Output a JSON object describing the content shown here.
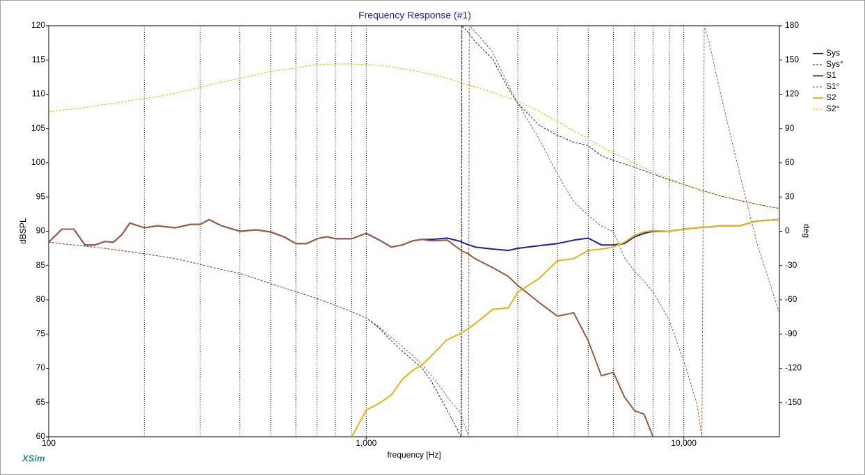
{
  "chart_data": {
    "type": "line",
    "title": "Frequency Response (#1)",
    "xlabel": "frequency [Hz]",
    "ylabel": "dBSPL",
    "y2label": "deg",
    "watermark": "XSim",
    "xscale": "log",
    "xlim": [
      100,
      20000
    ],
    "xticks": [
      100,
      {
        "value": 1000,
        "label": "1,000"
      },
      {
        "value": 10000,
        "label": "10,000"
      }
    ],
    "xgrid": [
      200,
      300,
      400,
      500,
      600,
      700,
      800,
      900,
      1000,
      2000,
      3000,
      4000,
      5000,
      6000,
      7000,
      8000,
      9000,
      10000
    ],
    "ylim": [
      60,
      120
    ],
    "yticks": [
      60,
      65,
      70,
      75,
      80,
      85,
      90,
      95,
      100,
      105,
      110,
      115,
      120
    ],
    "y2lim": [
      -180,
      180
    ],
    "y2ticks": [
      -150,
      -120,
      -90,
      -60,
      -30,
      0,
      30,
      60,
      90,
      120,
      150,
      180
    ],
    "legend": "right",
    "x": [
      100,
      110,
      120,
      130,
      140,
      150,
      160,
      170,
      180,
      200,
      220,
      250,
      280,
      300,
      320,
      350,
      400,
      450,
      500,
      550,
      600,
      650,
      700,
      750,
      800,
      900,
      1000,
      1100,
      1200,
      1300,
      1400,
      1500,
      1600,
      1800,
      1990,
      2000,
      2100,
      2110,
      2200,
      2500,
      2800,
      3000,
      3500,
      4000,
      4500,
      5000,
      5500,
      6000,
      6500,
      7000,
      7500,
      8000,
      9000,
      10000,
      11000,
      11400,
      11600,
      12000,
      13000,
      15000,
      17000,
      20000
    ],
    "series": [
      {
        "name": "Sys",
        "color": "#1c1ca8",
        "width": 2,
        "dash": false,
        "axis": "y",
        "values": [
          88.4,
          90.3,
          90.3,
          88,
          88,
          88.5,
          88.4,
          89.5,
          91.2,
          90.5,
          90.8,
          90.5,
          91,
          91,
          91.7,
          90.8,
          90,
          90.2,
          89.9,
          89.2,
          88.2,
          88.2,
          88.9,
          89.2,
          88.9,
          88.9,
          89.7,
          88.7,
          87.7,
          88,
          88.6,
          88.8,
          88.8,
          89,
          88.5,
          88.4,
          88,
          88,
          87.7,
          87.4,
          87.2,
          87.5,
          87.9,
          88.2,
          88.7,
          89,
          88,
          88,
          88.2,
          89.2,
          89.7,
          90,
          90,
          90.3,
          90.5,
          90.6,
          90.6,
          90.6,
          90.8,
          90.8,
          91.5,
          91.7
        ]
      },
      {
        "name": "Sys°",
        "color": "#202050",
        "width": 1,
        "dash": true,
        "axis": "y2",
        "values": [
          -9.4,
          -11,
          -12,
          -13,
          -14,
          -15,
          -16,
          -17,
          -18,
          -19.8,
          -21.5,
          -24,
          -27,
          -29,
          -31,
          -33.5,
          -37,
          -41.5,
          -46,
          -49.5,
          -53,
          -56,
          -59,
          -62,
          -65,
          -70.5,
          -76,
          -85,
          -96,
          -105,
          -113,
          -120,
          -131,
          -157,
          -180,
          180,
          174,
          173,
          166,
          151,
          125,
          112,
          93,
          84,
          78,
          75,
          66,
          62,
          59,
          56,
          53,
          50,
          45,
          41,
          37,
          35.5,
          35,
          34,
          31,
          27,
          23.5,
          20
        ]
      },
      {
        "name": "S1",
        "color": "#9b5a3c",
        "width": 2,
        "dash": false,
        "axis": "y",
        "values": [
          88.4,
          90.3,
          90.3,
          88,
          88,
          88.5,
          88.4,
          89.5,
          91.2,
          90.5,
          90.8,
          90.5,
          91,
          91,
          91.7,
          90.8,
          90,
          90.2,
          89.9,
          89.2,
          88.2,
          88.2,
          88.9,
          89.2,
          88.9,
          88.9,
          89.7,
          88.7,
          87.7,
          88,
          88.6,
          88.8,
          88.6,
          88.7,
          87.2,
          87.1,
          86.7,
          86.6,
          86,
          84.7,
          83.4,
          82.1,
          79.6,
          77.6,
          78.1,
          74,
          68.9,
          69.4,
          65.8,
          63.8,
          63.3,
          60,
          null,
          null,
          null,
          null,
          null,
          null,
          null,
          null,
          null,
          null
        ]
      },
      {
        "name": "S1°",
        "color": "#9b5a3c",
        "width": 1,
        "dash": true,
        "axis": "y2",
        "values": [
          -9.4,
          -11,
          -12,
          -13,
          -14,
          -15,
          -16,
          -17,
          -18,
          -19.8,
          -21.5,
          -24,
          -27,
          -29,
          -31,
          -33.5,
          -37,
          -41.5,
          -46,
          -49.5,
          -53,
          -56,
          -59,
          -62,
          -65,
          -70.5,
          -76,
          -84,
          -93,
          -101,
          -109,
          -117,
          -126,
          -145,
          -160,
          -163,
          -180,
          180,
          175,
          157,
          128,
          112,
          81,
          50,
          26,
          14,
          4.6,
          -0.4,
          -23,
          -35,
          -44,
          -53,
          -78,
          -114,
          -151,
          -180,
          180,
          166,
          123,
          50,
          -10.6,
          -71.5
        ]
      },
      {
        "name": "S2",
        "color": "#e8b30a",
        "width": 2,
        "dash": false,
        "axis": "y",
        "values": [
          null,
          null,
          null,
          null,
          null,
          null,
          null,
          null,
          null,
          null,
          null,
          null,
          null,
          null,
          null,
          null,
          null,
          null,
          null,
          null,
          null,
          null,
          null,
          null,
          null,
          60,
          63.9,
          64.9,
          66.1,
          68.4,
          69.7,
          70.5,
          71.8,
          74.2,
          75.1,
          75.2,
          75.8,
          75.9,
          76.5,
          78.6,
          78.8,
          81.1,
          83.1,
          85.7,
          86,
          87.2,
          87.4,
          87.7,
          88.4,
          89.4,
          89.9,
          90.1,
          90,
          90.3,
          90.5,
          90.6,
          90.6,
          90.6,
          90.8,
          90.8,
          91.5,
          91.7
        ]
      },
      {
        "name": "S2°",
        "color": "#e8b30a",
        "width": 1,
        "dash": true,
        "axis": "y2",
        "values": [
          104.5,
          106,
          107,
          108.5,
          110,
          111,
          112,
          113,
          114.5,
          116,
          118,
          121,
          124,
          126,
          128,
          130.5,
          134,
          137,
          140,
          141.5,
          143,
          144.5,
          146,
          146.3,
          146.5,
          146.5,
          146,
          145.2,
          144,
          142.5,
          141,
          139,
          137.5,
          134,
          130,
          129.5,
          128,
          127.8,
          126.5,
          121.5,
          117,
          114,
          105,
          96,
          88,
          81,
          74,
          68.5,
          64,
          59.5,
          55.5,
          51.5,
          46,
          41,
          37,
          35.5,
          35,
          34,
          31,
          27,
          23.5,
          20
        ]
      }
    ]
  }
}
